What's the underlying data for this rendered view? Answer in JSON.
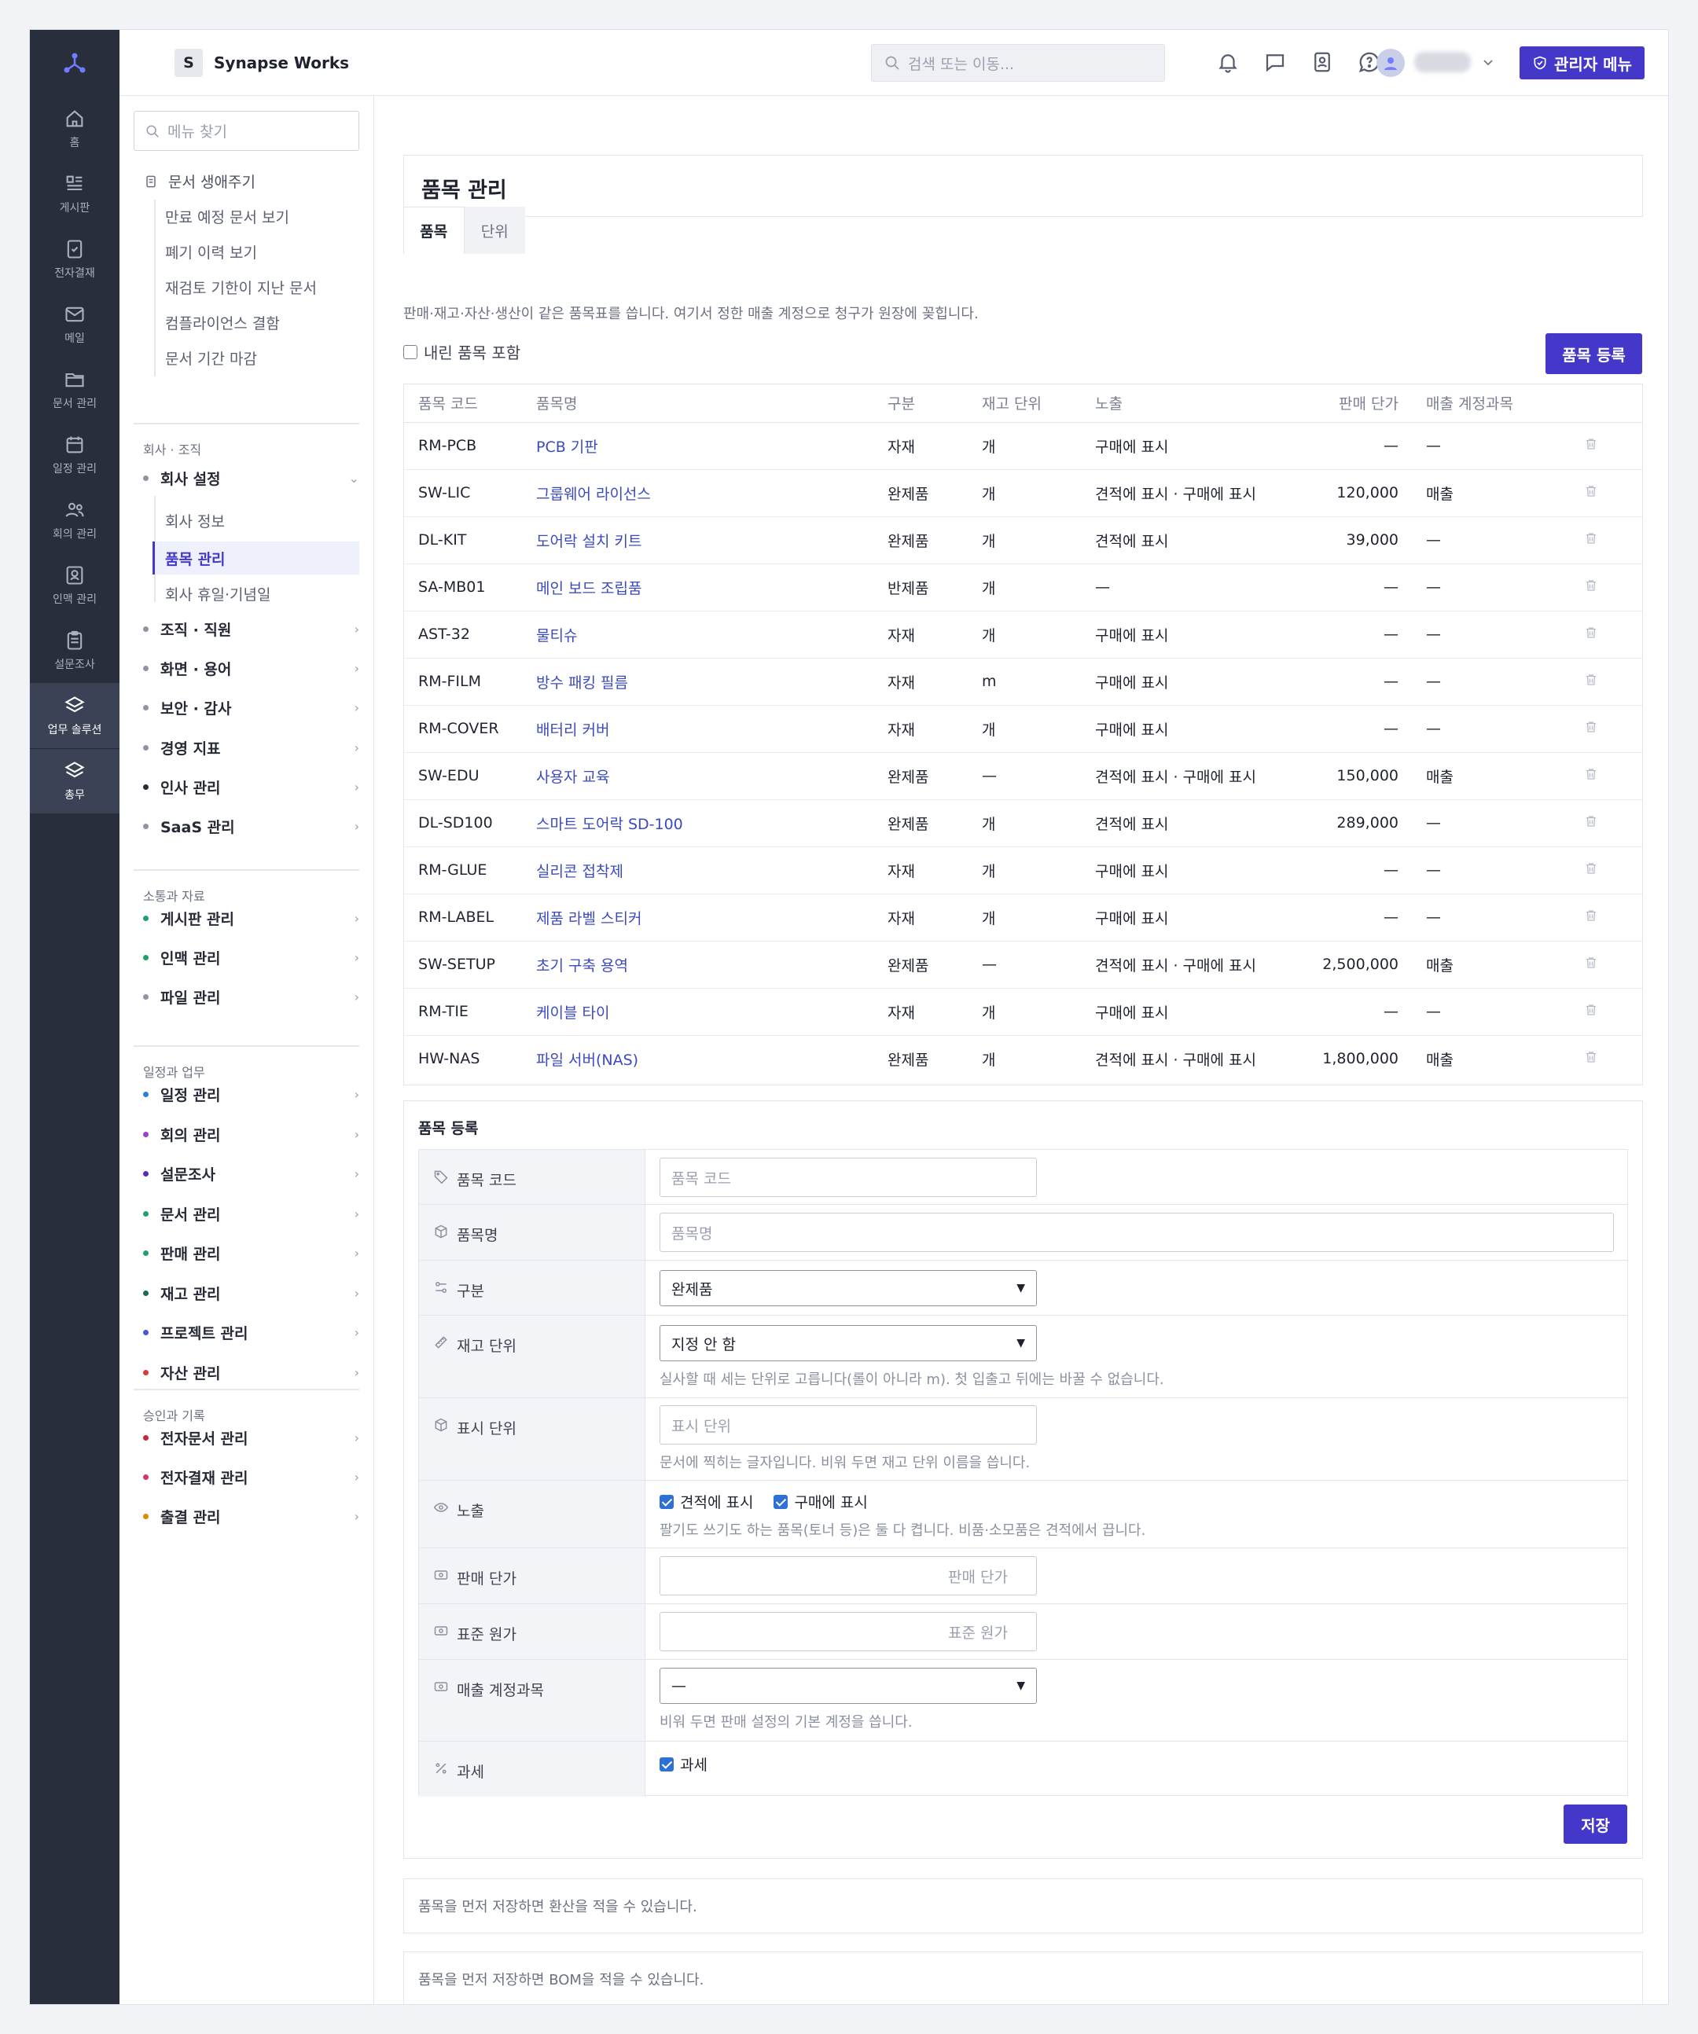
{
  "workspace": {
    "badge": "S",
    "name": "Synapse Works"
  },
  "header": {
    "search_placeholder": "검색 또는 이동...",
    "admin_label": "관리자 메뉴"
  },
  "rail": [
    {
      "label": "홈",
      "icon": "home-icon"
    },
    {
      "label": "게시판",
      "icon": "board-icon"
    },
    {
      "label": "전자결재",
      "icon": "approval-icon"
    },
    {
      "label": "메일",
      "icon": "mail-icon"
    },
    {
      "label": "문서 관리",
      "icon": "folder-icon"
    },
    {
      "label": "일정 관리",
      "icon": "calendar-icon"
    },
    {
      "label": "회의 관리",
      "icon": "users-icon"
    },
    {
      "label": "인맥 관리",
      "icon": "contact-icon"
    },
    {
      "label": "설문조사",
      "icon": "clipboard-icon"
    },
    {
      "label": "업무 솔루션",
      "icon": "layers-icon"
    },
    {
      "label": "총무",
      "icon": "layers-icon"
    }
  ],
  "sidebar": {
    "search_placeholder": "메뉴 찾기",
    "lifecycle": {
      "title": "문서 생애주기",
      "items": [
        "만료 예정 문서 보기",
        "폐기 이력 보기",
        "재검토 기한이 지난 문서",
        "컴플라이언스 결함",
        "문서 기간 마감"
      ]
    },
    "sections": [
      {
        "title": "회사 · 조직"
      },
      {
        "title": "소통과 자료"
      },
      {
        "title": "일정과 업무"
      },
      {
        "title": "승인과 기록"
      }
    ],
    "company_settings": {
      "label": "회사 설정",
      "items": [
        "회사 정보",
        "품목 관리",
        "회사 휴일·기념일"
      ]
    },
    "groups1": [
      "조직 · 직원",
      "화면 · 용어",
      "보안 · 감사",
      "경영 지표",
      "인사 관리",
      "SaaS 관리"
    ],
    "groups2": [
      "게시판 관리",
      "인맥 관리",
      "파일 관리"
    ],
    "groups3": [
      "일정 관리",
      "회의 관리",
      "설문조사",
      "문서 관리",
      "판매 관리",
      "재고 관리",
      "프로젝트 관리",
      "자산 관리"
    ],
    "groups4": [
      "전자문서 관리",
      "전자결재 관리",
      "출결 관리"
    ]
  },
  "page": {
    "title": "품목 관리",
    "tabs": [
      "품목",
      "단위"
    ],
    "description": "판매·재고·자산·생산이 같은 품목표를 씁니다. 여기서 정한 매출 계정으로 청구가 원장에 꽂힙니다.",
    "include_label": "내린 품목 포함",
    "register_button": "품목 등록"
  },
  "table": {
    "headers": [
      "품목 코드",
      "품목명",
      "구분",
      "재고 단위",
      "노출",
      "판매 단가",
      "매출 계정과목"
    ],
    "rows": [
      [
        "RM-PCB",
        "PCB 기판",
        "자재",
        "개",
        "구매에 표시",
        "—",
        "—"
      ],
      [
        "SW-LIC",
        "그룹웨어 라이선스",
        "완제품",
        "개",
        "견적에 표시 · 구매에 표시",
        "120,000",
        "매출"
      ],
      [
        "DL-KIT",
        "도어락 설치 키트",
        "완제품",
        "개",
        "견적에 표시",
        "39,000",
        "—"
      ],
      [
        "SA-MB01",
        "메인 보드 조립품",
        "반제품",
        "개",
        "—",
        "—",
        "—"
      ],
      [
        "AST-32",
        "물티슈",
        "자재",
        "개",
        "구매에 표시",
        "—",
        "—"
      ],
      [
        "RM-FILM",
        "방수 패킹 필름",
        "자재",
        "m",
        "구매에 표시",
        "—",
        "—"
      ],
      [
        "RM-COVER",
        "배터리 커버",
        "자재",
        "개",
        "구매에 표시",
        "—",
        "—"
      ],
      [
        "SW-EDU",
        "사용자 교육",
        "완제품",
        "—",
        "견적에 표시 · 구매에 표시",
        "150,000",
        "매출"
      ],
      [
        "DL-SD100",
        "스마트 도어락 SD-100",
        "완제품",
        "개",
        "견적에 표시",
        "289,000",
        "—"
      ],
      [
        "RM-GLUE",
        "실리콘 접착제",
        "자재",
        "개",
        "구매에 표시",
        "—",
        "—"
      ],
      [
        "RM-LABEL",
        "제품 라벨 스티커",
        "자재",
        "개",
        "구매에 표시",
        "—",
        "—"
      ],
      [
        "SW-SETUP",
        "초기 구축 용역",
        "완제품",
        "—",
        "견적에 표시 · 구매에 표시",
        "2,500,000",
        "매출"
      ],
      [
        "RM-TIE",
        "케이블 타이",
        "자재",
        "개",
        "구매에 표시",
        "—",
        "—"
      ],
      [
        "HW-NAS",
        "파일 서버(NAS)",
        "완제품",
        "개",
        "견적에 표시 · 구매에 표시",
        "1,800,000",
        "매출"
      ]
    ]
  },
  "form": {
    "title": "품목 등록",
    "code": {
      "label": "품목 코드",
      "placeholder": "품목 코드"
    },
    "name": {
      "label": "품목명",
      "placeholder": "품목명"
    },
    "kind": {
      "label": "구분",
      "value": "완제품"
    },
    "stock_unit": {
      "label": "재고 단위",
      "value": "지정 안 함",
      "help": "실사할 때 세는 단위로 고릅니다(롤이 아니라 m). 첫 입출고 뒤에는 바꿀 수 없습니다."
    },
    "display_unit": {
      "label": "표시 단위",
      "placeholder": "표시 단위",
      "help": "문서에 찍히는 글자입니다. 비워 두면 재고 단위 이름을 씁니다."
    },
    "visibility": {
      "label": "노출",
      "opt1": "견적에 표시",
      "opt2": "구매에 표시",
      "help": "팔기도 쓰기도 하는 품목(토너 등)은 둘 다 켭니다. 비품·소모품은 견적에서 끕니다."
    },
    "price": {
      "label": "판매 단가",
      "placeholder": "판매 단가"
    },
    "cost": {
      "label": "표준 원가",
      "placeholder": "표준 원가"
    },
    "account": {
      "label": "매출 계정과목",
      "value": "—",
      "help": "비워 두면 판매 설정의 기본 계정을 씁니다."
    },
    "tax": {
      "label": "과세",
      "checkbox": "과세"
    },
    "save": "저장"
  },
  "notes": {
    "conversion": "품목을 먼저 저장하면 환산을 적을 수 있습니다.",
    "bom": "품목을 먼저 저장하면 BOM을 적을 수 있습니다."
  },
  "colors": {
    "accent": "#4338ca",
    "rail": "#292e3d",
    "link": "#3b4ac0"
  }
}
